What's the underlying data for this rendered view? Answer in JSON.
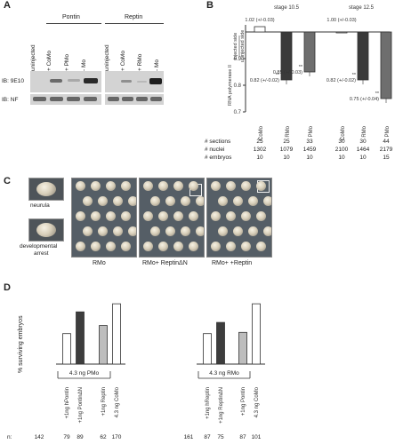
{
  "panelA": {
    "letter": "A",
    "pontin_header": "Pontin",
    "reptin_header": "Reptin",
    "lanes_left": [
      "uninjected",
      "+ CoMo",
      "+ PMo",
      "- Mo"
    ],
    "lanes_right": [
      "uninjected",
      "+ CoMo",
      "+ RMo",
      "- Mo"
    ],
    "row_ib1": "IB: 9E10",
    "row_ib2": "IB: NF"
  },
  "panelB": {
    "letter": "B",
    "stage1": "stage 10.5",
    "stage2": "stage 12.5",
    "ylabel1": "injected side",
    "ylabel2": "uninjected side",
    "ylabel3": "RNA polymerase II",
    "ylim": [
      0.7,
      1.0
    ],
    "yticks": [
      "0.9",
      "0.8",
      "0.7"
    ],
    "sig_star": "**",
    "bars": [
      {
        "group": "stage 10.5",
        "label": "CoMo",
        "value": 1.02,
        "text": "1.02 (+/-0.03)",
        "color": "#ffffff"
      },
      {
        "group": "stage 10.5",
        "label": "RMo",
        "value": 0.82,
        "text": "0.82 (+/-0.02)",
        "color": "#3a3a3a"
      },
      {
        "group": "stage 10.5",
        "label": "PMo",
        "value": 0.85,
        "text": "0.85 (+/-0.03)",
        "color": "#6e6e6e"
      },
      {
        "group": "stage 12.5",
        "label": "CoMo",
        "value": 1.0,
        "text": "1.00 (+/-0.03)",
        "color": "#ffffff"
      },
      {
        "group": "stage 12.5",
        "label": "RMo",
        "value": 0.82,
        "text": "0.82 (+/-0.02)",
        "color": "#3a3a3a"
      },
      {
        "group": "stage 12.5",
        "label": "PMo",
        "value": 0.75,
        "text": "0.75 (+/-0.04)",
        "color": "#6e6e6e"
      }
    ],
    "table": [
      {
        "label": "# sections",
        "values": [
          "25",
          "25",
          "33",
          "30",
          "30",
          "44"
        ]
      },
      {
        "label": "# nuclei",
        "values": [
          "1302",
          "1079",
          "1459",
          "2100",
          "1464",
          "2179"
        ]
      },
      {
        "label": "# embryos",
        "values": [
          "10",
          "10",
          "10",
          "10",
          "10",
          "15"
        ]
      }
    ]
  },
  "panelC": {
    "letter": "C",
    "thumb1_label": "neurula",
    "thumb2_label_line1": "developmental",
    "thumb2_label_line2": "arrest",
    "plates": [
      "RMo",
      "RMo+ ReptinΔN",
      "RMo+ +Reptin"
    ]
  },
  "panelD": {
    "letter": "D",
    "ylabel": "% surviving embryos",
    "chart_data": [
      {
        "type": "bar",
        "group_label": "4.3 ng PMo",
        "categories": [
          "+1ng hPontin",
          "+1ng PontinΔN",
          "+1ng Reptin",
          "4.3 ng CoMo"
        ],
        "values": [
          49,
          84,
          62,
          97
        ],
        "n": [
          "79",
          "89",
          "62",
          "170"
        ],
        "colors": [
          "#ffffff",
          "#3d3d3d",
          "#bdbdbd",
          "#ffffff"
        ],
        "ylim": [
          0,
          100
        ]
      },
      {
        "type": "bar",
        "group_label": "4.3 ng RMo",
        "categories": [
          "+1ng hReptin",
          "+1ng ReptinΔN",
          "+1ng Pontin",
          "4.3 ng CoMo"
        ],
        "values": [
          49,
          67,
          51,
          97
        ],
        "n": [
          "87",
          "75",
          "87",
          "101"
        ],
        "colors": [
          "#ffffff",
          "#3d3d3d",
          "#bdbdbd",
          "#ffffff"
        ],
        "ylim": [
          0,
          100
        ]
      }
    ],
    "n_label": "n:",
    "n_left_first": "142",
    "n_right_first": "161"
  }
}
